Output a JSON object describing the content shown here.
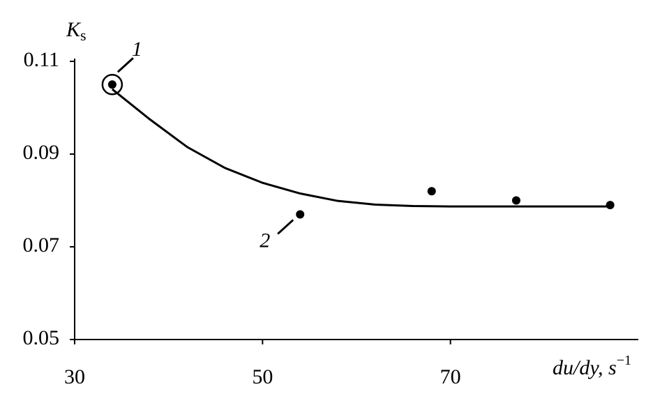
{
  "chart_data": {
    "type": "scatter",
    "y_label": {
      "main": "K",
      "sub": "s"
    },
    "x_label": {
      "main": "du/dy, s",
      "sup": "−1"
    },
    "x": [
      34,
      54,
      68,
      77,
      87
    ],
    "values": [
      0.105,
      0.077,
      0.082,
      0.08,
      0.079
    ],
    "color": "#000000",
    "curve": {
      "x": [
        34,
        38,
        42,
        46,
        50,
        54,
        58,
        62,
        66,
        70,
        78,
        87
      ],
      "values": [
        0.104,
        0.0975,
        0.0915,
        0.087,
        0.0838,
        0.0815,
        0.0799,
        0.0791,
        0.0788,
        0.0787,
        0.0787,
        0.0787
      ]
    },
    "annotations": [
      "1",
      "2"
    ],
    "xlim": [
      30,
      90
    ],
    "ylim": [
      0.05,
      0.11
    ],
    "xticks": [
      30,
      50,
      70
    ],
    "yticks": [
      0.05,
      0.07,
      0.09,
      0.11
    ]
  }
}
